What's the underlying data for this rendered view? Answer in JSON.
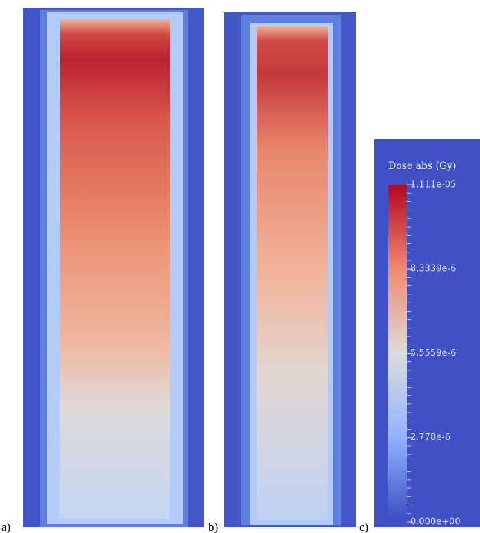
{
  "panels": [
    {
      "label": "a)"
    },
    {
      "label": "b)"
    },
    {
      "label": "c)"
    }
  ],
  "colorbar": {
    "title": "Dose abs (Gy)",
    "range": [
      0,
      1.111e-05
    ],
    "ticks": [
      {
        "value": 1.111e-05,
        "label": "1.111e-05"
      },
      {
        "value": 8.3339e-06,
        "label": "8.3339e-6"
      },
      {
        "value": 5.5559e-06,
        "label": "5.5559e-6"
      },
      {
        "value": 2.778e-06,
        "label": "2.778e-6"
      },
      {
        "value": 0,
        "label": "0.000e+00"
      }
    ]
  }
}
